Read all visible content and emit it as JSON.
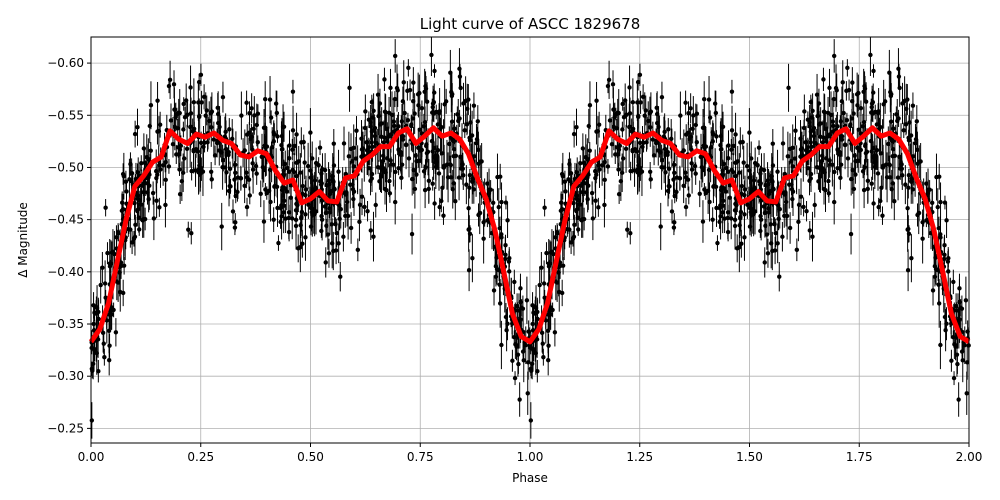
{
  "chart_data": {
    "type": "scatter",
    "title": "Light curve of ASCC 1829678",
    "xlabel": "Phase",
    "ylabel": "Δ Magnitude",
    "xlim": [
      0,
      2
    ],
    "ylim": [
      -0.236,
      -0.625
    ],
    "y_inverted": true,
    "grid": true,
    "xticks": [
      "0.00",
      "0.25",
      "0.50",
      "0.75",
      "1.00",
      "1.25",
      "1.50",
      "1.75",
      "2.00"
    ],
    "xtick_values": [
      0,
      0.25,
      0.5,
      0.75,
      1.0,
      1.25,
      1.5,
      1.75,
      2.0
    ],
    "yticks": [
      "−0.60",
      "−0.55",
      "−0.50",
      "−0.45",
      "−0.40",
      "−0.35",
      "−0.30",
      "−0.25"
    ],
    "ytick_values": [
      -0.6,
      -0.55,
      -0.5,
      -0.45,
      -0.4,
      -0.35,
      -0.3,
      -0.25
    ],
    "series": [
      {
        "kind": "errorbar-points",
        "color": "#000000",
        "periodic": true
      },
      {
        "kind": "model-line",
        "color": "#ff0000",
        "periodic": true,
        "x": [
          0,
          0.02,
          0.04,
          0.06,
          0.08,
          0.1,
          0.12,
          0.14,
          0.16,
          0.18,
          0.2,
          0.22,
          0.24,
          0.26,
          0.28,
          0.3,
          0.32,
          0.34,
          0.36,
          0.38,
          0.4,
          0.42,
          0.44,
          0.46,
          0.48,
          0.5,
          0.52,
          0.54,
          0.56,
          0.58,
          0.6,
          0.62,
          0.64,
          0.66,
          0.68,
          0.7,
          0.72,
          0.74,
          0.76,
          0.78,
          0.8,
          0.82,
          0.84,
          0.86,
          0.88,
          0.9,
          0.92,
          0.94,
          0.96,
          0.98,
          1.0
        ],
        "y": [
          -0.333,
          -0.345,
          -0.37,
          -0.41,
          -0.45,
          -0.482,
          -0.492,
          -0.505,
          -0.51,
          -0.535,
          -0.527,
          -0.523,
          -0.532,
          -0.529,
          -0.533,
          -0.526,
          -0.523,
          -0.512,
          -0.51,
          -0.516,
          -0.513,
          -0.497,
          -0.485,
          -0.488,
          -0.466,
          -0.47,
          -0.477,
          -0.468,
          -0.467,
          -0.49,
          -0.492,
          -0.506,
          -0.512,
          -0.52,
          -0.52,
          -0.533,
          -0.537,
          -0.523,
          -0.53,
          -0.538,
          -0.53,
          -0.533,
          -0.527,
          -0.513,
          -0.49,
          -0.47,
          -0.44,
          -0.4,
          -0.36,
          -0.338,
          -0.333
        ]
      }
    ]
  }
}
